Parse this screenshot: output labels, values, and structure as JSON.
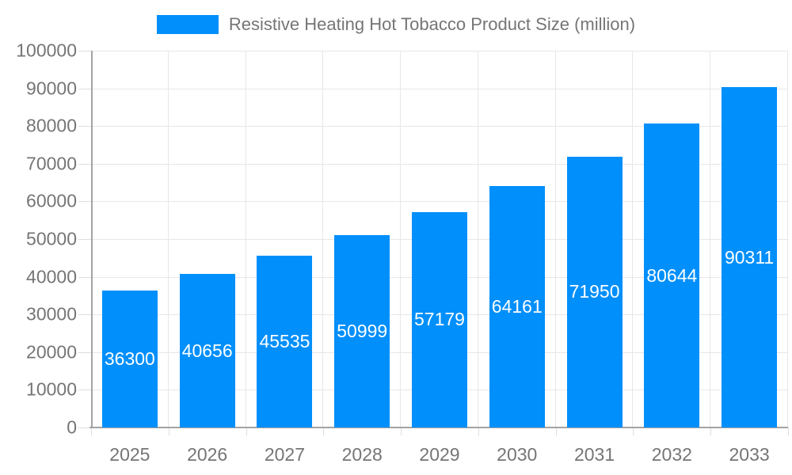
{
  "chart_data": {
    "type": "bar",
    "title": "Resistive Heating Hot Tobacco Product Size (million)",
    "categories": [
      "2025",
      "2026",
      "2027",
      "2028",
      "2029",
      "2030",
      "2031",
      "2032",
      "2033"
    ],
    "values": [
      36300,
      40656,
      45535,
      50999,
      57179,
      64161,
      71950,
      80644,
      90311
    ],
    "xlabel": "",
    "ylabel": "",
    "ylim": [
      0,
      100000
    ],
    "yticks": [
      0,
      10000,
      20000,
      30000,
      40000,
      50000,
      60000,
      70000,
      80000,
      90000,
      100000
    ],
    "grid": "on",
    "legend_position": "top",
    "value_labels": "inside-center"
  },
  "colors": {
    "bar": "#008FFB",
    "gridline": "#e7e7e7",
    "axis_line": "#a3a3a3",
    "tick": "#dedede",
    "axis_text": "#757575",
    "value_text": "#ffffff",
    "background": "#ffffff"
  }
}
